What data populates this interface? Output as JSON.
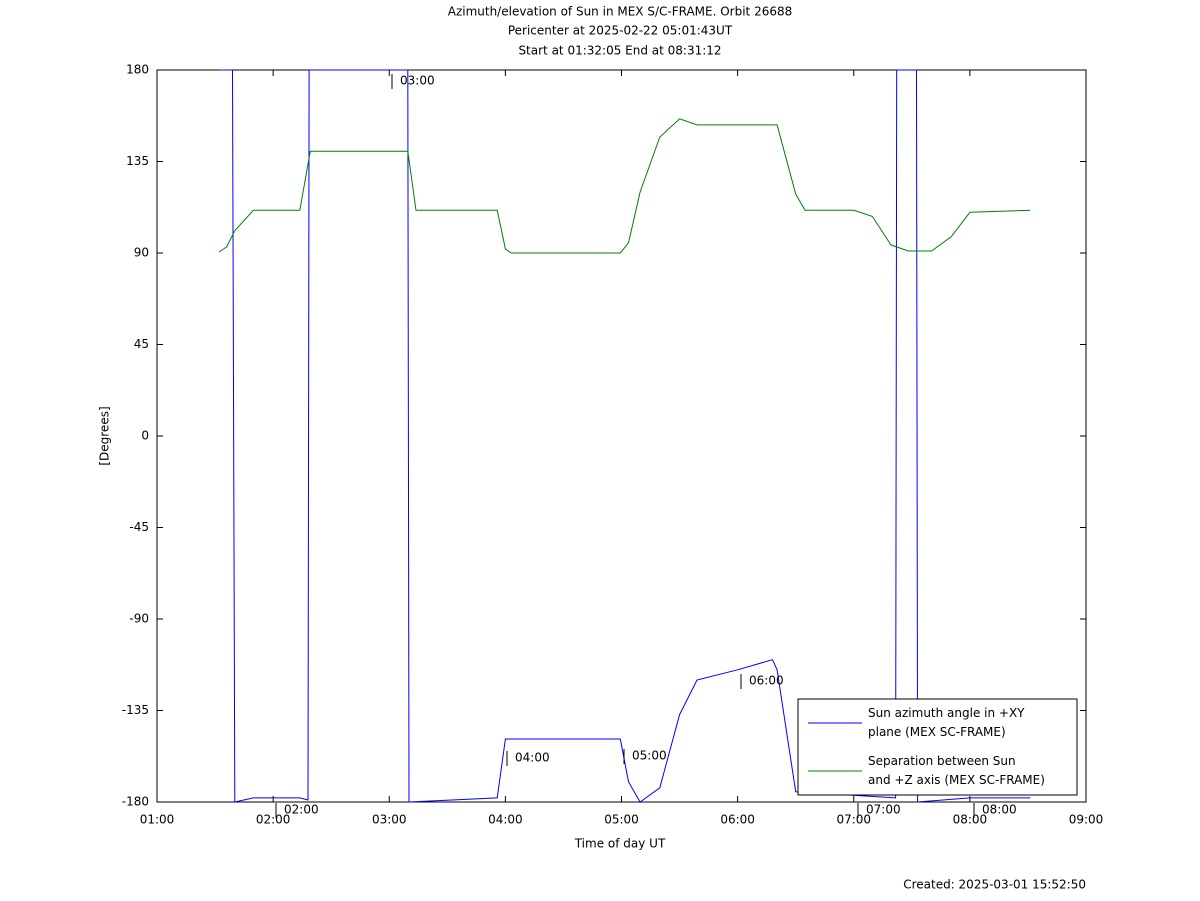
{
  "chart_data": {
    "type": "line",
    "title": "Azimuth/elevation of Sun in MEX S/C-FRAME.  Orbit 26688",
    "subtitle": "Pericenter at 2025-02-22 05:01:43UT",
    "subtitle2": "Start at 01:32:05 End at 08:31:12",
    "xlabel": "Time of day UT",
    "ylabel": "[Degrees]",
    "footer": "Created: 2025-03-01 15:52:50",
    "xlim": [
      1,
      9
    ],
    "xticks": [
      {
        "value": 1,
        "label": "01:00"
      },
      {
        "value": 2,
        "label": "02:00"
      },
      {
        "value": 3,
        "label": "03:00"
      },
      {
        "value": 4,
        "label": "04:00"
      },
      {
        "value": 5,
        "label": "05:00"
      },
      {
        "value": 6,
        "label": "06:00"
      },
      {
        "value": 7,
        "label": "07:00"
      },
      {
        "value": 8,
        "label": "08:00"
      },
      {
        "value": 9,
        "label": "09:00"
      }
    ],
    "ylim": [
      -180,
      180
    ],
    "yticks": [
      -180,
      -135,
      -90,
      -45,
      0,
      45,
      90,
      135,
      180
    ],
    "grid": false,
    "legend": "lower right",
    "annotations": [
      "03:00",
      "04:00",
      "05:00",
      "06:00",
      "07:00",
      "08:00",
      "02:00"
    ],
    "series": [
      {
        "name": "Sun azimuth angle in +XY plane (MEX SC-FRAME)",
        "color": "#0000ff",
        "x": [
          1.535,
          1.65,
          1.67,
          1.83,
          2.23,
          2.3,
          2.31,
          3.16,
          3.17,
          3.93,
          4.0,
          4.99,
          5.06,
          5.16,
          5.33,
          5.5,
          5.65,
          6.0,
          6.3,
          6.34,
          6.5,
          7.36,
          7.37,
          7.54,
          7.55,
          8.0,
          8.52
        ],
        "values": [
          180,
          180,
          -180,
          -178,
          -178,
          -179,
          180,
          180,
          -180,
          -178,
          -149,
          -149,
          -170,
          -180,
          -173,
          -137,
          -120,
          -115,
          -110,
          -115,
          -175,
          -178,
          180,
          180,
          -180,
          -178,
          -178
        ]
      },
      {
        "name": "Separation between Sun and +Z axis (MEX SC-FRAME)",
        "color": "#008000",
        "x": [
          1.535,
          1.6,
          1.67,
          1.83,
          2.23,
          2.32,
          3.16,
          3.23,
          3.93,
          4.0,
          4.05,
          4.99,
          5.06,
          5.16,
          5.33,
          5.5,
          5.65,
          6.34,
          6.5,
          6.58,
          7.0,
          7.16,
          7.32,
          7.47,
          7.67,
          7.84,
          8.0,
          8.52
        ],
        "values": [
          90.5,
          93,
          101,
          111,
          111,
          140,
          140,
          111,
          111,
          92,
          90,
          90,
          95,
          120,
          147,
          156,
          153,
          153,
          119,
          111,
          111,
          108,
          94,
          91,
          91,
          98,
          110,
          111
        ]
      }
    ]
  }
}
